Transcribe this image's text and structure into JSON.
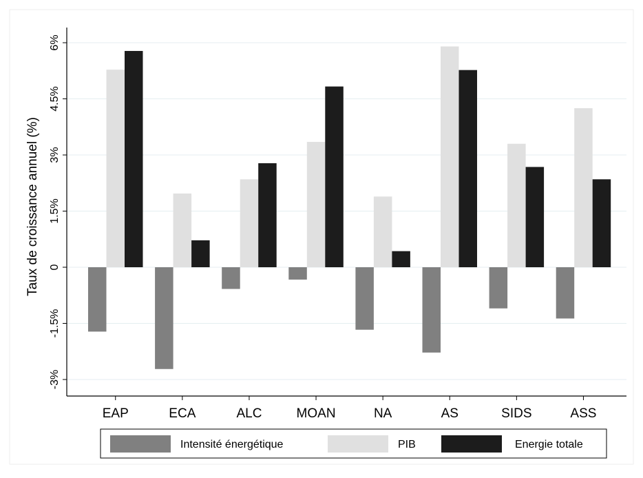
{
  "chart_data": {
    "type": "bar",
    "title": "",
    "xlabel": "",
    "ylabel": "Taux de croissance annuel (%)",
    "ylim": [
      -3.4,
      6.5
    ],
    "y_ticks": [
      -3,
      -1.5,
      0,
      1.5,
      3,
      4.5,
      6
    ],
    "y_tick_labels": [
      "-3%",
      "-1.5%",
      "0",
      "1.5%",
      "3%",
      "4.5%",
      "6%"
    ],
    "grid": true,
    "legend_position": "bottom",
    "categories": [
      "EAP",
      "ECA",
      "ALC",
      "MOAN",
      "NA",
      "AS",
      "SIDS",
      "ASS"
    ],
    "series": [
      {
        "name": "Intensité énergétique",
        "color": "#808080",
        "values": [
          -1.72,
          -2.72,
          -0.58,
          -0.33,
          -1.67,
          -2.28,
          -1.1,
          -1.37
        ]
      },
      {
        "name": "PIB",
        "color": "#e0e0e0",
        "values": [
          5.28,
          1.97,
          2.35,
          3.35,
          1.89,
          5.9,
          3.3,
          4.25
        ]
      },
      {
        "name": "Energie totale",
        "color": "#1c1c1c",
        "values": [
          5.78,
          0.72,
          2.78,
          4.83,
          0.43,
          5.27,
          2.68,
          2.35
        ]
      }
    ]
  }
}
